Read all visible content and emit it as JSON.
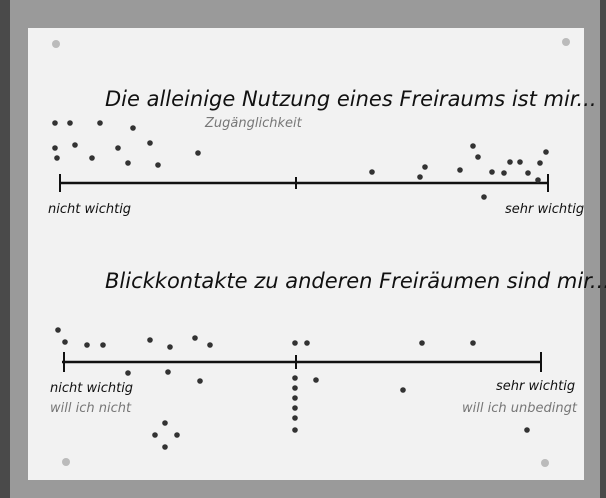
{
  "scales": [
    {
      "statement": "Die alleinige Nutzung eines Freiraums ist mir...",
      "note": "Zugänglichkeit",
      "left_label": "nicht wichtig",
      "right_label": "sehr wichtig"
    },
    {
      "statement": "Blickkontakte zu anderen Freiräumen sind mir...",
      "left_label": "nicht wichtig",
      "left_note": "will ich nicht",
      "right_label": "sehr wichtig",
      "right_note": "will ich unbedingt"
    }
  ]
}
